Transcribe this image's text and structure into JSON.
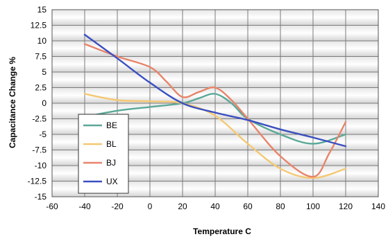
{
  "chart_data": {
    "type": "line",
    "title": "",
    "xlabel": "Temperature C",
    "ylabel": "Capacitance Change %",
    "xlim": [
      -60,
      140
    ],
    "ylim": [
      -15,
      15
    ],
    "x_ticks": [
      -60,
      -40,
      -20,
      0,
      20,
      40,
      60,
      80,
      100,
      120,
      140
    ],
    "y_ticks": [
      15,
      12.5,
      10,
      7.5,
      5,
      2.5,
      0,
      -2.5,
      -5,
      -7.5,
      -10,
      -12.5,
      -15
    ],
    "grid": true,
    "legend_position": "left",
    "series": [
      {
        "name": "BE",
        "color": "#5aa898",
        "x": [
          -40,
          -20,
          0,
          20,
          30,
          40,
          50,
          60,
          80,
          100,
          120
        ],
        "y": [
          -2.2,
          -1.2,
          -0.6,
          0,
          0.8,
          1.5,
          0,
          -2.5,
          -5.0,
          -6.5,
          -5.0
        ]
      },
      {
        "name": "BL",
        "color": "#f5c872",
        "x": [
          -40,
          -20,
          0,
          20,
          40,
          60,
          80,
          100,
          120
        ],
        "y": [
          1.5,
          0.5,
          0.3,
          0,
          -2.0,
          -6.5,
          -10.5,
          -12.0,
          -10.5
        ]
      },
      {
        "name": "BJ",
        "color": "#e8846a",
        "x": [
          -40,
          -20,
          0,
          10,
          20,
          30,
          40,
          50,
          60,
          80,
          100,
          110,
          120
        ],
        "y": [
          9.5,
          7.5,
          5.8,
          3.5,
          1.0,
          1.8,
          2.5,
          0.5,
          -2.5,
          -8.5,
          -11.8,
          -8.0,
          -3.0
        ]
      },
      {
        "name": "UX",
        "color": "#3a4fc0",
        "x": [
          -40,
          -20,
          0,
          20,
          40,
          60,
          80,
          100,
          120
        ],
        "y": [
          11.0,
          7.2,
          3.3,
          0,
          -1.5,
          -2.7,
          -4.2,
          -5.5,
          -6.9
        ]
      }
    ]
  }
}
